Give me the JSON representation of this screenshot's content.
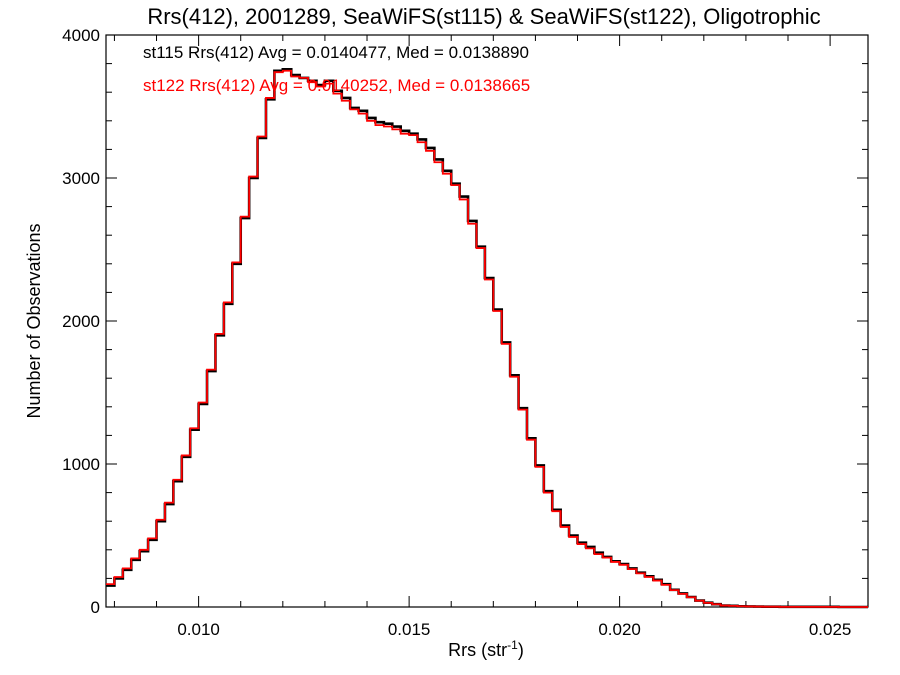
{
  "chart_data": {
    "type": "line",
    "title": "Rrs(412), 2001289, SeaWiFS(st115) & SeaWiFS(st122), Oligotrophic",
    "xlabel": "Rrs (str",
    "xlabel_sup": "-1",
    "xlabel_suffix": ")",
    "ylabel": "Number of Observations",
    "xlim": [
      0.0078,
      0.0259
    ],
    "ylim": [
      0,
      4000
    ],
    "x_ticks": [
      0.01,
      0.015,
      0.02,
      0.025
    ],
    "x_tick_labels": [
      "0.010",
      "0.015",
      "0.020",
      "0.025"
    ],
    "y_ticks": [
      0,
      1000,
      2000,
      3000,
      4000
    ],
    "y_tick_labels": [
      "0",
      "1000",
      "2000",
      "3000",
      "4000"
    ],
    "grid": false,
    "step": true,
    "series": [
      {
        "name": "st115",
        "color": "#000000",
        "annotation": "st115 Rrs(412) Avg = 0.0140477, Med = 0.0138890",
        "x": [
          0.0078,
          0.008,
          0.0082,
          0.0084,
          0.0086,
          0.0088,
          0.009,
          0.0092,
          0.0094,
          0.0096,
          0.0098,
          0.01,
          0.0102,
          0.0104,
          0.0106,
          0.0108,
          0.011,
          0.0112,
          0.0114,
          0.0116,
          0.0118,
          0.012,
          0.0122,
          0.0124,
          0.0126,
          0.0128,
          0.013,
          0.0132,
          0.0134,
          0.0136,
          0.0138,
          0.014,
          0.0142,
          0.0144,
          0.0146,
          0.0148,
          0.015,
          0.0152,
          0.0154,
          0.0156,
          0.0158,
          0.016,
          0.0162,
          0.0164,
          0.0166,
          0.0168,
          0.017,
          0.0172,
          0.0174,
          0.0176,
          0.0178,
          0.018,
          0.0182,
          0.0184,
          0.0186,
          0.0188,
          0.019,
          0.0192,
          0.0194,
          0.0196,
          0.0198,
          0.02,
          0.0202,
          0.0204,
          0.0206,
          0.0208,
          0.021,
          0.0212,
          0.0214,
          0.0216,
          0.0218,
          0.022,
          0.0222,
          0.0224,
          0.0226,
          0.0228,
          0.023,
          0.0232,
          0.0234,
          0.0236,
          0.0238,
          0.024,
          0.0242,
          0.0244,
          0.0246,
          0.0248,
          0.025,
          0.0252,
          0.0254,
          0.0256,
          0.0258
        ],
        "y": [
          150,
          200,
          260,
          330,
          390,
          470,
          600,
          720,
          880,
          1050,
          1240,
          1420,
          1650,
          1900,
          2120,
          2400,
          2720,
          3000,
          3280,
          3550,
          3750,
          3760,
          3720,
          3700,
          3680,
          3650,
          3680,
          3610,
          3560,
          3490,
          3470,
          3420,
          3390,
          3380,
          3360,
          3330,
          3310,
          3270,
          3210,
          3130,
          3050,
          2960,
          2870,
          2700,
          2520,
          2300,
          2080,
          1850,
          1620,
          1390,
          1180,
          990,
          810,
          680,
          570,
          500,
          450,
          420,
          380,
          350,
          320,
          300,
          270,
          240,
          215,
          190,
          160,
          120,
          95,
          70,
          45,
          30,
          20,
          10,
          8,
          5,
          4,
          3,
          2,
          2,
          1,
          1,
          1,
          1,
          1,
          1,
          1,
          0,
          0,
          0,
          0
        ]
      },
      {
        "name": "st122",
        "color": "#ff0000",
        "annotation": "st122 Rrs(412) Avg = 0.0140252, Med = 0.0138665",
        "x": [
          0.0078,
          0.008,
          0.0082,
          0.0084,
          0.0086,
          0.0088,
          0.009,
          0.0092,
          0.0094,
          0.0096,
          0.0098,
          0.01,
          0.0102,
          0.0104,
          0.0106,
          0.0108,
          0.011,
          0.0112,
          0.0114,
          0.0116,
          0.0118,
          0.012,
          0.0122,
          0.0124,
          0.0126,
          0.0128,
          0.013,
          0.0132,
          0.0134,
          0.0136,
          0.0138,
          0.014,
          0.0142,
          0.0144,
          0.0146,
          0.0148,
          0.015,
          0.0152,
          0.0154,
          0.0156,
          0.0158,
          0.016,
          0.0162,
          0.0164,
          0.0166,
          0.0168,
          0.017,
          0.0172,
          0.0174,
          0.0176,
          0.0178,
          0.018,
          0.0182,
          0.0184,
          0.0186,
          0.0188,
          0.019,
          0.0192,
          0.0194,
          0.0196,
          0.0198,
          0.02,
          0.0202,
          0.0204,
          0.0206,
          0.0208,
          0.021,
          0.0212,
          0.0214,
          0.0216,
          0.0218,
          0.022,
          0.0222,
          0.0224,
          0.0226,
          0.0228,
          0.023,
          0.0232,
          0.0234,
          0.0236,
          0.0238,
          0.024,
          0.0242,
          0.0244,
          0.0246,
          0.0248,
          0.025,
          0.0252,
          0.0254,
          0.0256,
          0.0258
        ],
        "y": [
          160,
          210,
          270,
          340,
          400,
          480,
          610,
          730,
          890,
          1060,
          1250,
          1430,
          1660,
          1910,
          2130,
          2410,
          2730,
          3010,
          3290,
          3560,
          3740,
          3750,
          3710,
          3700,
          3670,
          3640,
          3660,
          3590,
          3540,
          3480,
          3450,
          3400,
          3370,
          3360,
          3340,
          3310,
          3300,
          3250,
          3190,
          3110,
          3030,
          2950,
          2850,
          2680,
          2510,
          2290,
          2070,
          1840,
          1610,
          1380,
          1170,
          980,
          800,
          670,
          560,
          490,
          440,
          410,
          370,
          345,
          315,
          295,
          265,
          235,
          210,
          185,
          155,
          118,
          92,
          68,
          44,
          29,
          19,
          10,
          8,
          5,
          4,
          3,
          2,
          2,
          1,
          1,
          1,
          1,
          1,
          1,
          1,
          0,
          0,
          0,
          0
        ]
      }
    ]
  }
}
